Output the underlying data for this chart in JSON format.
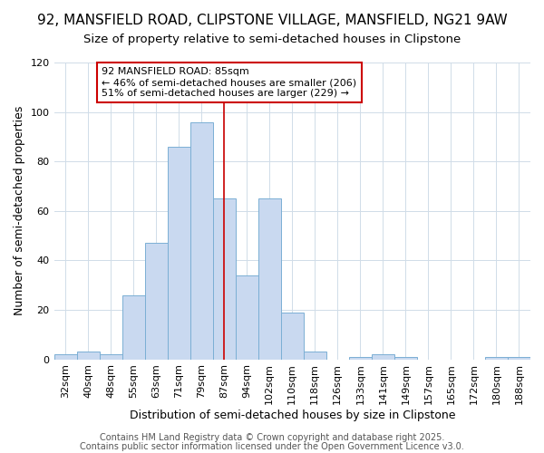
{
  "title1": "92, MANSFIELD ROAD, CLIPSTONE VILLAGE, MANSFIELD, NG21 9AW",
  "title2": "Size of property relative to semi-detached houses in Clipstone",
  "xlabel": "Distribution of semi-detached houses by size in Clipstone",
  "ylabel": "Number of semi-detached properties",
  "categories": [
    "32sqm",
    "40sqm",
    "48sqm",
    "55sqm",
    "63sqm",
    "71sqm",
    "79sqm",
    "87sqm",
    "94sqm",
    "102sqm",
    "110sqm",
    "118sqm",
    "126sqm",
    "133sqm",
    "141sqm",
    "149sqm",
    "157sqm",
    "165sqm",
    "172sqm",
    "180sqm",
    "188sqm"
  ],
  "values": [
    2,
    3,
    2,
    26,
    47,
    86,
    96,
    65,
    34,
    65,
    19,
    3,
    0,
    1,
    2,
    1,
    0,
    0,
    0,
    1,
    1
  ],
  "bar_color": "#c9d9f0",
  "bar_edge_color": "#7bafd4",
  "annotation_line1": "92 MANSFIELD ROAD: 85sqm",
  "annotation_line2": "← 46% of semi-detached houses are smaller (206)",
  "annotation_line3": "51% of semi-detached houses are larger (229) →",
  "annotation_box_color": "white",
  "annotation_box_edge": "#cc0000",
  "marker_bin_index": 7,
  "marker_color": "#cc0000",
  "ylim": [
    0,
    120
  ],
  "yticks": [
    0,
    20,
    40,
    60,
    80,
    100,
    120
  ],
  "footer1": "Contains HM Land Registry data © Crown copyright and database right 2025.",
  "footer2": "Contains public sector information licensed under the Open Government Licence v3.0.",
  "bg_color": "#ffffff",
  "grid_color": "#d0dce8",
  "title_fontsize": 11,
  "subtitle_fontsize": 9.5,
  "axis_label_fontsize": 9,
  "tick_fontsize": 8,
  "annotation_fontsize": 8,
  "footer_fontsize": 7
}
